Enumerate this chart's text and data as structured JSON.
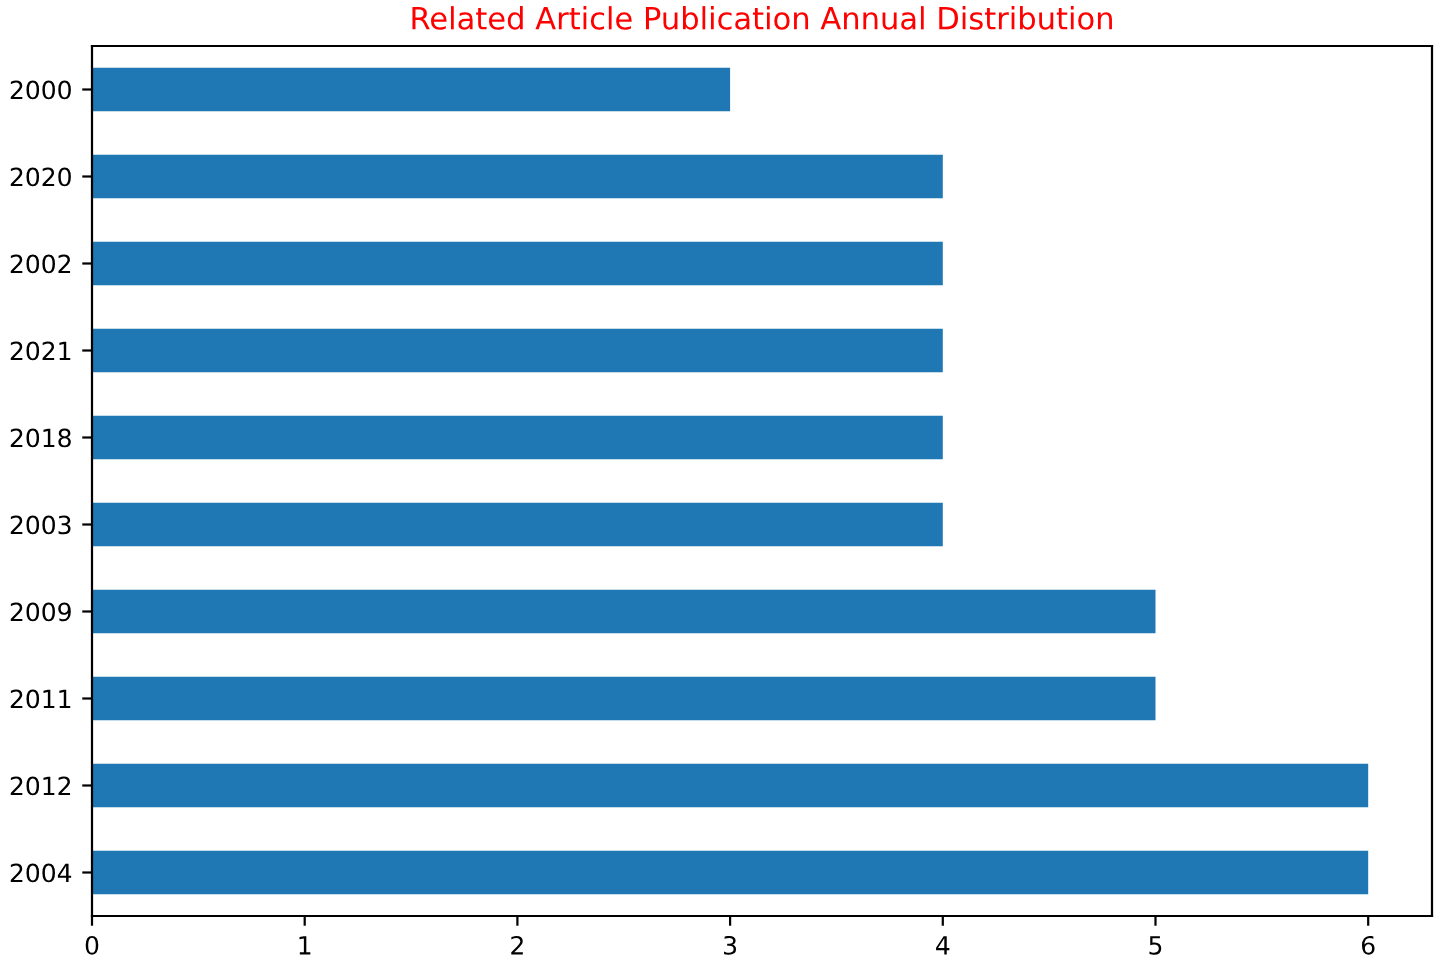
{
  "chart_data": {
    "type": "bar",
    "orientation": "horizontal",
    "title": "Related Article Publication Annual Distribution",
    "categories": [
      "2000",
      "2020",
      "2002",
      "2021",
      "2018",
      "2003",
      "2009",
      "2011",
      "2012",
      "2004"
    ],
    "values": [
      3,
      4,
      4,
      4,
      4,
      4,
      5,
      5,
      6,
      6
    ],
    "color": "#1f77b4",
    "xlim": [
      0,
      6.3
    ],
    "xticks": [
      0,
      1,
      2,
      3,
      4,
      5,
      6
    ],
    "grid": false,
    "legend": false
  }
}
